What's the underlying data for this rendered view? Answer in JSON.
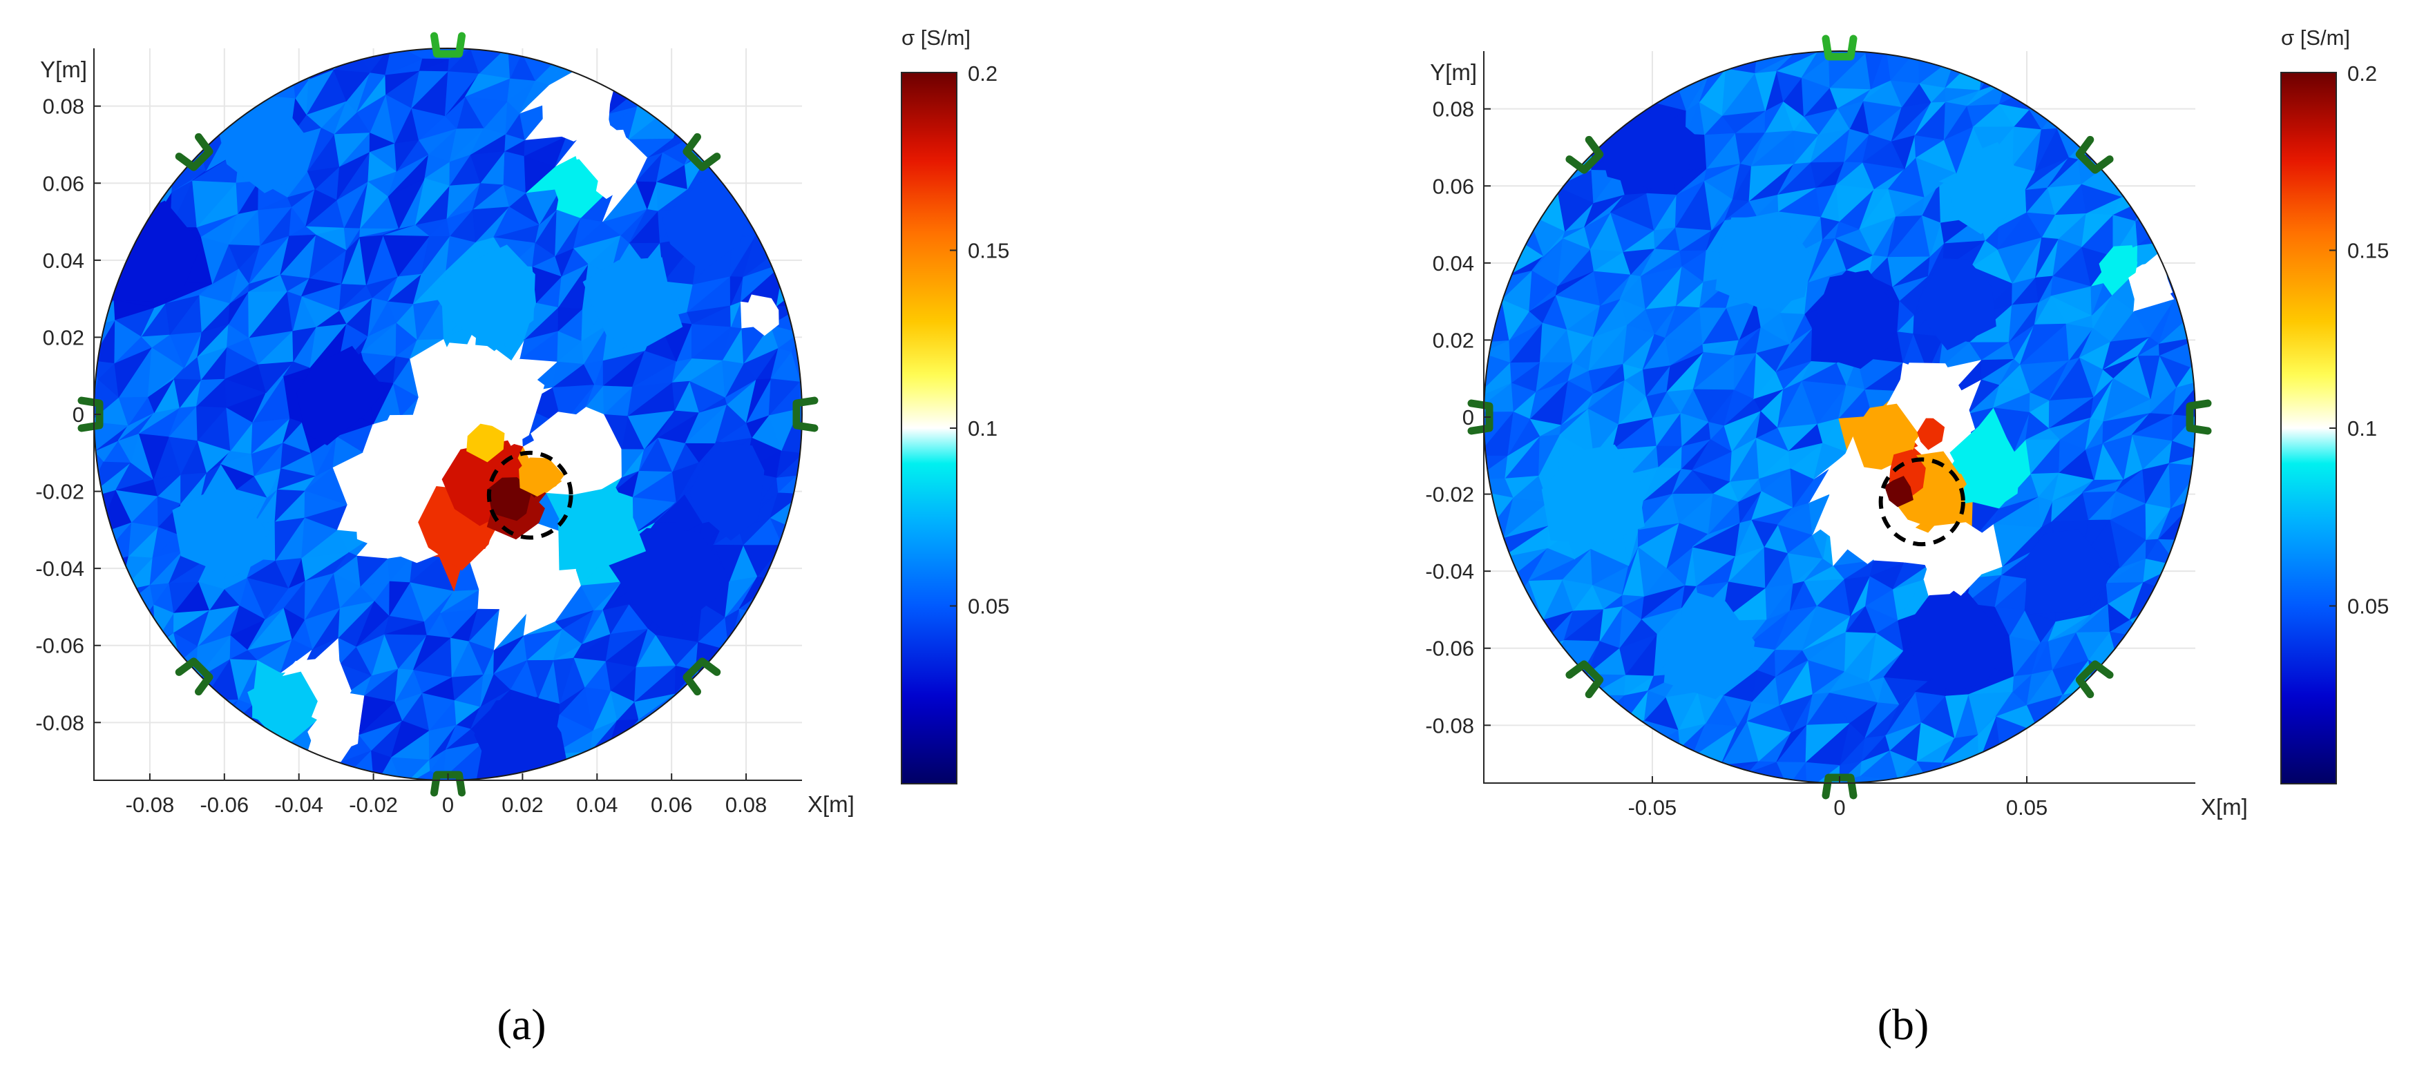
{
  "figure": {
    "panel_a_label": "(a)",
    "panel_b_label": "(b)"
  },
  "chart_data": [
    {
      "type": "heatmap",
      "panel": "(a)",
      "title": "",
      "xlabel": "X[m]",
      "ylabel": "Y[m]",
      "xlim": [
        -0.095,
        0.095
      ],
      "ylim": [
        -0.095,
        0.095
      ],
      "xticks": [
        -0.08,
        -0.06,
        -0.04,
        -0.02,
        0,
        0.02,
        0.04,
        0.06,
        0.08
      ],
      "xtick_labels": [
        "-0.08",
        "-0.06",
        "-0.04",
        "-0.02",
        "0",
        "0.02",
        "0.04",
        "0.06",
        "0.08"
      ],
      "yticks": [
        0.08,
        0.06,
        0.04,
        0.02,
        0,
        -0.02,
        -0.04,
        -0.06,
        -0.08
      ],
      "ytick_labels": [
        "0.08",
        "0.06",
        "0.04",
        "0.02",
        "0",
        "-0.02",
        "-0.04",
        "-0.06",
        "-0.08"
      ],
      "grid": true,
      "domain_radius": 0.095,
      "background_sigma": 0.05,
      "electrodes_angles_deg": [
        90,
        45,
        0,
        -45,
        -90,
        -135,
        180,
        135
      ],
      "electrode_color": "#1e6b1e",
      "top_electrode_color": "#2bb02b",
      "target_circle": {
        "cx": 0.022,
        "cy": -0.021,
        "r": 0.011
      },
      "colorbar": {
        "title": "σ [S/m]",
        "range": [
          0.0,
          0.2
        ],
        "ticks": [
          0.2,
          0.15,
          0.1,
          0.05
        ],
        "tick_labels": [
          "0.2",
          "0.15",
          "0.1",
          "0.05"
        ],
        "colormap": "jet-white"
      },
      "regions": [
        {
          "x": 0.002,
          "y": -0.028,
          "sigma": 0.17,
          "r": 0.012
        },
        {
          "x": 0.01,
          "y": -0.017,
          "sigma": 0.18,
          "r": 0.011
        },
        {
          "x": 0.018,
          "y": -0.025,
          "sigma": 0.19,
          "r": 0.008
        },
        {
          "x": 0.017,
          "y": -0.022,
          "sigma": 0.2,
          "r": 0.006
        },
        {
          "x": 0.025,
          "y": -0.016,
          "sigma": 0.14,
          "r": 0.006
        },
        {
          "x": 0.01,
          "y": -0.007,
          "sigma": 0.13,
          "r": 0.005
        },
        {
          "x": -0.01,
          "y": -0.02,
          "sigma": 0.1,
          "r": 0.019
        },
        {
          "x": 0.02,
          "y": -0.04,
          "sigma": 0.1,
          "r": 0.015
        },
        {
          "x": 0.035,
          "y": -0.01,
          "sigma": 0.1,
          "r": 0.012
        },
        {
          "x": 0.008,
          "y": 0.005,
          "sigma": 0.1,
          "r": 0.017
        },
        {
          "x": 0.04,
          "y": -0.03,
          "sigma": 0.08,
          "r": 0.013
        },
        {
          "x": 0.035,
          "y": 0.08,
          "sigma": 0.1,
          "r": 0.01
        },
        {
          "x": 0.042,
          "y": 0.065,
          "sigma": 0.1,
          "r": 0.009
        },
        {
          "x": 0.034,
          "y": 0.06,
          "sigma": 0.09,
          "r": 0.008
        },
        {
          "x": 0.084,
          "y": 0.026,
          "sigma": 0.1,
          "r": 0.005
        },
        {
          "x": -0.035,
          "y": -0.072,
          "sigma": 0.1,
          "r": 0.01
        },
        {
          "x": -0.03,
          "y": -0.082,
          "sigma": 0.1,
          "r": 0.007
        },
        {
          "x": -0.045,
          "y": -0.075,
          "sigma": 0.08,
          "r": 0.009
        },
        {
          "x": -0.08,
          "y": 0.04,
          "sigma": 0.03,
          "r": 0.014
        },
        {
          "x": -0.03,
          "y": 0.005,
          "sigma": 0.03,
          "r": 0.012
        },
        {
          "x": 0.06,
          "y": -0.04,
          "sigma": 0.035,
          "r": 0.016
        },
        {
          "x": 0.075,
          "y": -0.02,
          "sigma": 0.04,
          "r": 0.012
        },
        {
          "x": -0.05,
          "y": 0.07,
          "sigma": 0.06,
          "r": 0.012
        },
        {
          "x": 0.01,
          "y": 0.03,
          "sigma": 0.07,
          "r": 0.014
        },
        {
          "x": 0.05,
          "y": 0.03,
          "sigma": 0.065,
          "r": 0.013
        },
        {
          "x": -0.06,
          "y": -0.03,
          "sigma": 0.065,
          "r": 0.013
        },
        {
          "x": 0.02,
          "y": -0.085,
          "sigma": 0.035,
          "r": 0.012
        },
        {
          "x": 0.07,
          "y": 0.05,
          "sigma": 0.045,
          "r": 0.012
        }
      ]
    },
    {
      "type": "heatmap",
      "panel": "(b)",
      "title": "",
      "xlabel": "X[m]",
      "ylabel": "Y[m]",
      "xlim": [
        -0.095,
        0.095
      ],
      "ylim": [
        -0.095,
        0.095
      ],
      "xticks": [
        -0.05,
        0,
        0.05
      ],
      "xtick_labels": [
        "-0.05",
        "0",
        "0.05"
      ],
      "yticks": [
        0.08,
        0.06,
        0.04,
        0.02,
        0,
        -0.02,
        -0.04,
        -0.06,
        -0.08
      ],
      "ytick_labels": [
        "0.08",
        "0.06",
        "0.04",
        "0.02",
        "0",
        "-0.02",
        "-0.04",
        "-0.06",
        "-0.08"
      ],
      "grid": true,
      "domain_radius": 0.095,
      "background_sigma": 0.055,
      "electrodes_angles_deg": [
        90,
        45,
        0,
        -45,
        -90,
        -135,
        180,
        135
      ],
      "electrode_color": "#1e6b1e",
      "top_electrode_color": "#2bb02b",
      "target_circle": {
        "cx": 0.022,
        "cy": -0.022,
        "r": 0.011
      },
      "colorbar": {
        "title": "σ [S/m]",
        "range": [
          0.0,
          0.2
        ],
        "ticks": [
          0.2,
          0.15,
          0.1,
          0.05
        ],
        "tick_labels": [
          "0.2",
          "0.15",
          "0.1",
          "0.05"
        ],
        "colormap": "jet-white"
      },
      "regions": [
        {
          "x": 0.012,
          "y": -0.006,
          "sigma": 0.14,
          "r": 0.009
        },
        {
          "x": 0.025,
          "y": -0.02,
          "sigma": 0.14,
          "r": 0.011
        },
        {
          "x": 0.018,
          "y": -0.015,
          "sigma": 0.17,
          "r": 0.006
        },
        {
          "x": 0.016,
          "y": -0.019,
          "sigma": 0.2,
          "r": 0.004
        },
        {
          "x": 0.024,
          "y": -0.004,
          "sigma": 0.17,
          "r": 0.004
        },
        {
          "x": 0.01,
          "y": -0.02,
          "sigma": 0.1,
          "r": 0.016
        },
        {
          "x": 0.025,
          "y": 0.002,
          "sigma": 0.1,
          "r": 0.012
        },
        {
          "x": 0.03,
          "y": -0.035,
          "sigma": 0.1,
          "r": 0.011
        },
        {
          "x": 0.04,
          "y": -0.012,
          "sigma": 0.09,
          "r": 0.01
        },
        {
          "x": 0.083,
          "y": 0.035,
          "sigma": 0.1,
          "r": 0.006
        },
        {
          "x": 0.075,
          "y": 0.04,
          "sigma": 0.09,
          "r": 0.006
        },
        {
          "x": 0.005,
          "y": 0.025,
          "sigma": 0.035,
          "r": 0.012
        },
        {
          "x": 0.03,
          "y": 0.03,
          "sigma": 0.04,
          "r": 0.012
        },
        {
          "x": -0.05,
          "y": 0.07,
          "sigma": 0.035,
          "r": 0.013
        },
        {
          "x": 0.03,
          "y": -0.06,
          "sigma": 0.035,
          "r": 0.014
        },
        {
          "x": 0.06,
          "y": -0.04,
          "sigma": 0.04,
          "r": 0.013
        },
        {
          "x": -0.065,
          "y": -0.02,
          "sigma": 0.07,
          "r": 0.015
        },
        {
          "x": -0.035,
          "y": -0.06,
          "sigma": 0.065,
          "r": 0.014
        },
        {
          "x": 0.04,
          "y": 0.06,
          "sigma": 0.07,
          "r": 0.012
        },
        {
          "x": -0.02,
          "y": 0.04,
          "sigma": 0.065,
          "r": 0.013
        }
      ]
    }
  ]
}
